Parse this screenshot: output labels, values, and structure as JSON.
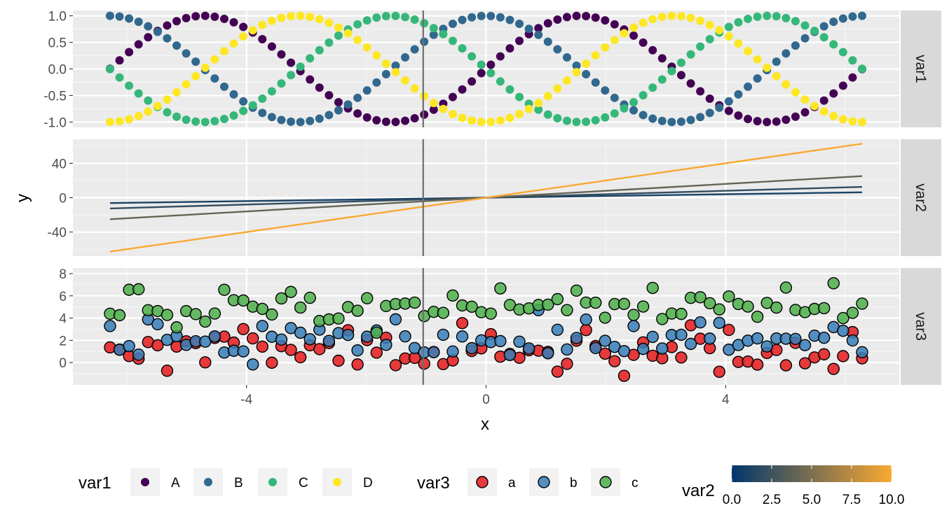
{
  "chart_data": {
    "type": "faceted",
    "xlabel": "x",
    "ylabel": "y",
    "xlim": [
      -6.9,
      6.9
    ],
    "x_ticks": [
      -4,
      0,
      4
    ],
    "x_tick_labels": [
      "-4",
      "0",
      "4"
    ],
    "vline_x": -1.05,
    "panels": [
      {
        "strip": "var1",
        "kind": "points",
        "ylim": [
          -1.1,
          1.1
        ],
        "y_ticks": [
          1.0,
          0.5,
          0.0,
          -0.5,
          -1.0
        ],
        "y_tick_labels": [
          "1.0",
          "0.5",
          "0.0",
          "-0.5",
          "-1.0"
        ],
        "x_range": [
          -6.28,
          6.28
        ],
        "n_points": 80,
        "series": [
          {
            "name": "A",
            "fn": "sin",
            "phase": 0
          },
          {
            "name": "B",
            "fn": "cos",
            "phase": 0
          },
          {
            "name": "C",
            "fn": "sin",
            "phase": 3.14159
          },
          {
            "name": "D",
            "fn": "cos",
            "phase": 3.14159
          }
        ]
      },
      {
        "strip": "var2",
        "kind": "lines",
        "ylim": [
          -68,
          68
        ],
        "y_ticks": [
          40,
          0,
          -40
        ],
        "y_tick_labels": [
          "40",
          "0",
          "-40"
        ],
        "x_range": [
          -6.28,
          6.28
        ],
        "series": [
          {
            "name": "1",
            "slope": 1,
            "var2": 1
          },
          {
            "name": "2",
            "slope": 2,
            "var2": 2
          },
          {
            "name": "4",
            "slope": 4,
            "var2": 4
          },
          {
            "name": "10",
            "slope": 10,
            "var2": 10
          }
        ]
      },
      {
        "strip": "var3",
        "kind": "points",
        "ylim": [
          -2,
          8.5
        ],
        "y_ticks": [
          8,
          6,
          4,
          2,
          0
        ],
        "y_tick_labels": [
          "8",
          "6",
          "4",
          "2",
          "0"
        ],
        "x_range": [
          -6.28,
          6.28
        ],
        "n_points": 80,
        "series": [
          {
            "name": "a",
            "center": 1.0,
            "spread": 1.0
          },
          {
            "name": "b",
            "center": 2.0,
            "spread": 0.9
          },
          {
            "name": "c",
            "center": 5.0,
            "spread": 1.0
          }
        ]
      }
    ],
    "legends": [
      {
        "title": "var1",
        "kind": "discrete-points",
        "labels": [
          "A",
          "B",
          "C",
          "D"
        ]
      },
      {
        "title": "var3",
        "kind": "discrete-filled-points",
        "labels": [
          "a",
          "b",
          "c"
        ]
      },
      {
        "title": "var2",
        "kind": "colorbar",
        "range": [
          0,
          10
        ],
        "tick_labels": [
          "0.0",
          "2.5",
          "5.0",
          "7.5",
          "10.0"
        ],
        "tick_values": [
          0,
          2.5,
          5,
          7.5,
          10
        ]
      }
    ]
  },
  "colors": {
    "var1": {
      "A": "#440154",
      "B": "#31688e",
      "C": "#35b779",
      "D": "#fde725"
    },
    "var3": {
      "a": "#e41a1c",
      "b": "#377eb8",
      "c": "#4daf4a"
    },
    "var2_low": "#00366c",
    "var2_high": "#f9a932",
    "panel_bg": "#ebebeb",
    "strip_bg": "#d9d9d9",
    "vline": "#6e6e6e"
  }
}
